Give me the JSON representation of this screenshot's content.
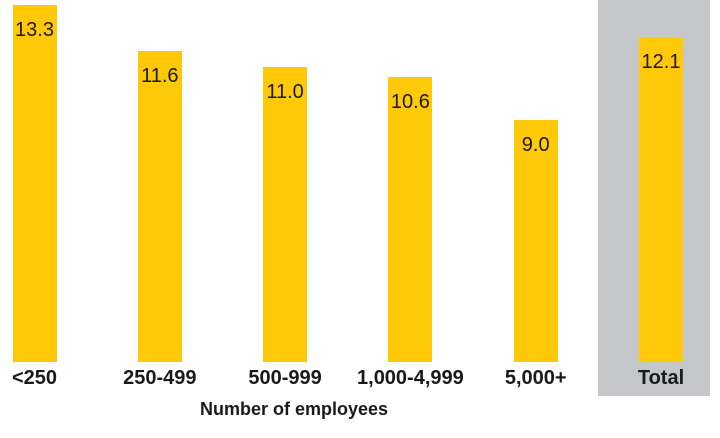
{
  "chart_data": {
    "type": "bar",
    "title": "",
    "xlabel": "Number of employees",
    "ylabel": "",
    "categories": [
      "<250",
      "250-499",
      "500-999",
      "1,000-4,999",
      "5,000+",
      "Total"
    ],
    "values": [
      13.3,
      11.6,
      11.0,
      10.6,
      9.0,
      12.1
    ],
    "value_labels": [
      "13.3",
      "11.6",
      "11.0",
      "10.6",
      "9.0",
      "12.1"
    ],
    "ylim": [
      0,
      13.6
    ],
    "grid": false,
    "legend": false,
    "value_label_position": "inside-top",
    "bar_color": "#FFC907",
    "text_color": "#1A1A1A",
    "highlight": {
      "category": "Total",
      "panel_color": "#C5C6C8"
    }
  }
}
